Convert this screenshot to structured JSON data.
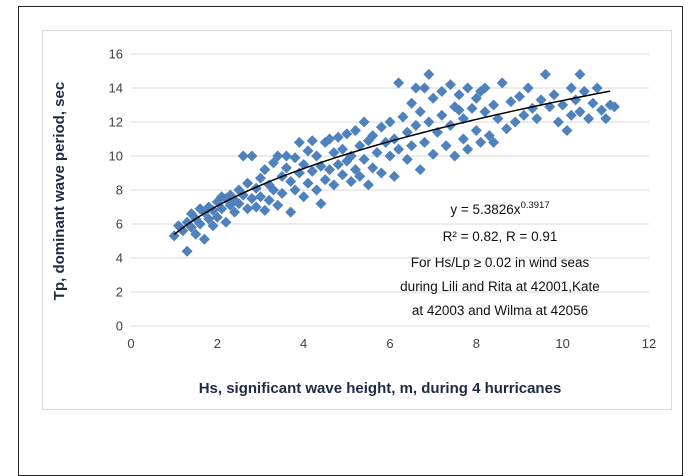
{
  "chart_data": {
    "type": "scatter",
    "xlabel": "Hs, significant wave height, m, during 4 hurricanes",
    "ylabel": "Tp, dominant wave period, sec",
    "xlim": [
      0,
      12
    ],
    "ylim": [
      0,
      16
    ],
    "xticks": [
      "0",
      "2",
      "4",
      "6",
      "8",
      "10",
      "12"
    ],
    "yticks": [
      "0",
      "2",
      "4",
      "6",
      "8",
      "10",
      "12",
      "14",
      "16"
    ],
    "grid": "horizontal",
    "marker": "diamond",
    "marker_color": "#4f81bd",
    "trend_color": "#000000",
    "trendline": {
      "type": "power",
      "a": 5.3826,
      "b": 0.3917,
      "x_range": [
        1.0,
        11.1
      ]
    },
    "annotations": {
      "equation_base": "y = 5.3826x",
      "equation_exp": "0.3917",
      "stats": "R² = 0.82, R = 0.91",
      "note_line1": "For Hs/Lp ≥ 0.02 in wind seas",
      "note_line2": "during Lili and Rita at 42001,Kate",
      "note_line3": "at 42003 and Wilma at 42056"
    },
    "points": [
      [
        1.0,
        5.3
      ],
      [
        1.1,
        5.9
      ],
      [
        1.2,
        5.6
      ],
      [
        1.3,
        4.4
      ],
      [
        1.3,
        6.1
      ],
      [
        1.4,
        6.6
      ],
      [
        1.4,
        5.8
      ],
      [
        1.5,
        6.3
      ],
      [
        1.5,
        5.4
      ],
      [
        1.6,
        6.9
      ],
      [
        1.6,
        6.0
      ],
      [
        1.7,
        5.1
      ],
      [
        1.7,
        6.7
      ],
      [
        1.8,
        6.3
      ],
      [
        1.8,
        7.0
      ],
      [
        1.9,
        5.9
      ],
      [
        1.9,
        6.8
      ],
      [
        2.0,
        7.3
      ],
      [
        2.0,
        6.4
      ],
      [
        2.1,
        7.6
      ],
      [
        2.1,
        6.9
      ],
      [
        2.2,
        6.1
      ],
      [
        2.2,
        7.5
      ],
      [
        2.3,
        7.1
      ],
      [
        2.3,
        7.7
      ],
      [
        2.4,
        6.7
      ],
      [
        2.4,
        7.4
      ],
      [
        2.5,
        8.0
      ],
      [
        2.5,
        7.2
      ],
      [
        2.6,
        10.0
      ],
      [
        2.6,
        7.7
      ],
      [
        2.7,
        8.4
      ],
      [
        2.7,
        6.9
      ],
      [
        2.8,
        10.0
      ],
      [
        2.8,
        7.5
      ],
      [
        2.9,
        8.1
      ],
      [
        2.9,
        7.0
      ],
      [
        3.0,
        8.7
      ],
      [
        3.0,
        7.6
      ],
      [
        3.1,
        9.2
      ],
      [
        3.1,
        6.8
      ],
      [
        3.2,
        8.3
      ],
      [
        3.2,
        7.4
      ],
      [
        3.3,
        9.6
      ],
      [
        3.3,
        8.0
      ],
      [
        3.4,
        10.0
      ],
      [
        3.4,
        7.1
      ],
      [
        3.5,
        8.8
      ],
      [
        3.5,
        7.8
      ],
      [
        3.6,
        9.3
      ],
      [
        3.6,
        10.0
      ],
      [
        3.7,
        8.5
      ],
      [
        3.7,
        6.7
      ],
      [
        3.8,
        9.9
      ],
      [
        3.8,
        8.0
      ],
      [
        3.9,
        10.8
      ],
      [
        3.9,
        9.0
      ],
      [
        4.0,
        9.5
      ],
      [
        4.0,
        7.6
      ],
      [
        4.1,
        10.3
      ],
      [
        4.1,
        8.4
      ],
      [
        4.2,
        10.9
      ],
      [
        4.2,
        9.1
      ],
      [
        4.3,
        8.0
      ],
      [
        4.3,
        10.0
      ],
      [
        4.4,
        9.4
      ],
      [
        4.4,
        7.2
      ],
      [
        4.5,
        10.8
      ],
      [
        4.5,
        8.6
      ],
      [
        4.6,
        11.0
      ],
      [
        4.6,
        9.2
      ],
      [
        4.7,
        10.2
      ],
      [
        4.7,
        8.3
      ],
      [
        4.8,
        11.1
      ],
      [
        4.8,
        9.5
      ],
      [
        4.9,
        10.4
      ],
      [
        4.9,
        8.9
      ],
      [
        5.0,
        11.3
      ],
      [
        5.0,
        9.7
      ],
      [
        5.1,
        10.0
      ],
      [
        5.1,
        8.5
      ],
      [
        5.2,
        11.5
      ],
      [
        5.2,
        9.2
      ],
      [
        5.3,
        10.6
      ],
      [
        5.3,
        8.8
      ],
      [
        5.4,
        12.0
      ],
      [
        5.4,
        9.8
      ],
      [
        5.5,
        10.9
      ],
      [
        5.5,
        8.3
      ],
      [
        5.6,
        11.2
      ],
      [
        5.6,
        9.3
      ],
      [
        5.7,
        10.2
      ],
      [
        5.8,
        11.7
      ],
      [
        5.8,
        9.0
      ],
      [
        5.9,
        10.8
      ],
      [
        6.0,
        12.0
      ],
      [
        6.0,
        10.0
      ],
      [
        6.1,
        11.0
      ],
      [
        6.1,
        8.8
      ],
      [
        6.2,
        14.3
      ],
      [
        6.2,
        10.4
      ],
      [
        6.3,
        12.3
      ],
      [
        6.4,
        11.4
      ],
      [
        6.4,
        9.8
      ],
      [
        6.5,
        13.1
      ],
      [
        6.5,
        10.6
      ],
      [
        6.6,
        14.0
      ],
      [
        6.6,
        11.8
      ],
      [
        6.7,
        9.2
      ],
      [
        6.7,
        12.6
      ],
      [
        6.8,
        10.8
      ],
      [
        6.9,
        14.8
      ],
      [
        6.9,
        12.0
      ],
      [
        7.0,
        13.4
      ],
      [
        7.0,
        10.1
      ],
      [
        7.1,
        11.4
      ],
      [
        7.2,
        13.8
      ],
      [
        7.2,
        12.4
      ],
      [
        7.3,
        10.6
      ],
      [
        7.4,
        14.2
      ],
      [
        7.4,
        11.8
      ],
      [
        7.5,
        12.9
      ],
      [
        7.5,
        10.0
      ],
      [
        7.6,
        13.6
      ],
      [
        7.7,
        11.0
      ],
      [
        7.7,
        12.2
      ],
      [
        7.8,
        14.0
      ],
      [
        7.8,
        10.4
      ],
      [
        7.9,
        12.8
      ],
      [
        8.0,
        11.5
      ],
      [
        8.0,
        13.4
      ],
      [
        8.1,
        10.8
      ],
      [
        8.2,
        12.6
      ],
      [
        8.2,
        14.0
      ],
      [
        8.3,
        11.2
      ],
      [
        8.4,
        13.0
      ],
      [
        8.4,
        10.8
      ],
      [
        8.5,
        12.2
      ],
      [
        8.6,
        14.3
      ],
      [
        8.7,
        11.6
      ],
      [
        8.8,
        13.2
      ],
      [
        8.9,
        12.0
      ],
      [
        9.0,
        13.5
      ],
      [
        9.1,
        12.4
      ],
      [
        9.2,
        14.0
      ],
      [
        9.3,
        12.8
      ],
      [
        9.4,
        12.2
      ],
      [
        9.5,
        13.3
      ],
      [
        9.6,
        14.8
      ],
      [
        9.7,
        12.9
      ],
      [
        9.8,
        13.6
      ],
      [
        9.9,
        12.0
      ],
      [
        10.0,
        13.0
      ],
      [
        10.1,
        11.5
      ],
      [
        10.2,
        14.0
      ],
      [
        10.2,
        12.4
      ],
      [
        10.3,
        13.3
      ],
      [
        10.4,
        14.8
      ],
      [
        10.4,
        12.6
      ],
      [
        10.5,
        13.8
      ],
      [
        10.6,
        12.2
      ],
      [
        10.7,
        13.1
      ],
      [
        10.8,
        14.0
      ],
      [
        10.9,
        12.7
      ],
      [
        11.0,
        12.2
      ],
      [
        11.1,
        13.0
      ],
      [
        11.2,
        12.9
      ],
      [
        6.8,
        14.0
      ],
      [
        7.6,
        12.7
      ],
      [
        8.1,
        13.8
      ]
    ]
  }
}
